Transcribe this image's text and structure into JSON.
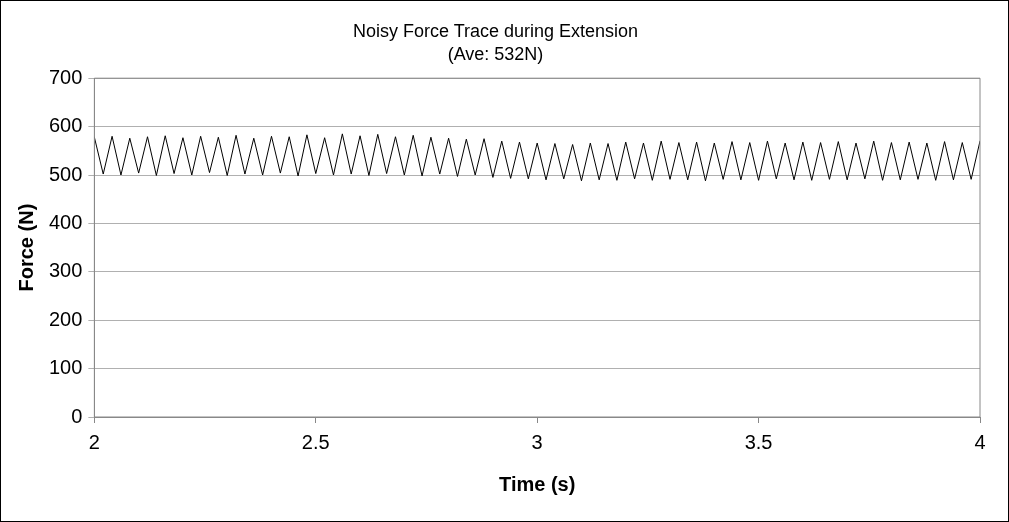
{
  "chart_data": {
    "type": "line",
    "title": "Noisy Force Trace during Extension",
    "subtitle": "(Ave: 532N)",
    "xlabel": "Time (s)",
    "ylabel": "Force (N)",
    "x": [
      2,
      2.02,
      2.04,
      2.06,
      2.08,
      2.1,
      2.12,
      2.14,
      2.16,
      2.18,
      2.2,
      2.22,
      2.24,
      2.26,
      2.28,
      2.3,
      2.32,
      2.34,
      2.36,
      2.38,
      2.4,
      2.42,
      2.44,
      2.46,
      2.48,
      2.5,
      2.52,
      2.54,
      2.56,
      2.58,
      2.6,
      2.62,
      2.64,
      2.66,
      2.68,
      2.7,
      2.72,
      2.74,
      2.76,
      2.78,
      2.8,
      2.82,
      2.84,
      2.86,
      2.88,
      2.9,
      2.92,
      2.94,
      2.96,
      2.98,
      3,
      3.02,
      3.04,
      3.06,
      3.08,
      3.1,
      3.12,
      3.14,
      3.16,
      3.18,
      3.2,
      3.22,
      3.24,
      3.26,
      3.28,
      3.3,
      3.32,
      3.34,
      3.36,
      3.38,
      3.4,
      3.42,
      3.44,
      3.46,
      3.48,
      3.5,
      3.52,
      3.54,
      3.56,
      3.58,
      3.6,
      3.62,
      3.64,
      3.66,
      3.68,
      3.7,
      3.72,
      3.74,
      3.76,
      3.78,
      3.8,
      3.82,
      3.84,
      3.86,
      3.88,
      3.9,
      3.92,
      3.94,
      3.96,
      3.98,
      4
    ],
    "series": [
      {
        "color": "#000000",
        "values": [
          578,
          502,
          580,
          500,
          576,
          504,
          579,
          499,
          581,
          503,
          577,
          500,
          580,
          505,
          578,
          499,
          582,
          502,
          576,
          500,
          580,
          504,
          579,
          498,
          583,
          503,
          577,
          500,
          585,
          502,
          581,
          499,
          584,
          503,
          579,
          500,
          582,
          498,
          578,
          502,
          576,
          497,
          574,
          500,
          575,
          495,
          570,
          493,
          568,
          492,
          566,
          490,
          565,
          492,
          563,
          488,
          566,
          490,
          565,
          489,
          568,
          492,
          566,
          489,
          570,
          491,
          567,
          490,
          568,
          488,
          566,
          491,
          569,
          490,
          567,
          489,
          570,
          492,
          566,
          490,
          568,
          489,
          567,
          491,
          569,
          490,
          566,
          492,
          570,
          489,
          567,
          490,
          568,
          491,
          566,
          489,
          569,
          490,
          567,
          491,
          570
        ]
      }
    ],
    "xlim": [
      2,
      4
    ],
    "xticks": [
      2,
      2.5,
      3,
      3.5,
      4
    ],
    "ylim": [
      0,
      700
    ],
    "yticks": [
      0,
      100,
      200,
      300,
      400,
      500,
      600,
      700
    ],
    "grid": "y",
    "marker": "none",
    "line_style": "solid"
  }
}
